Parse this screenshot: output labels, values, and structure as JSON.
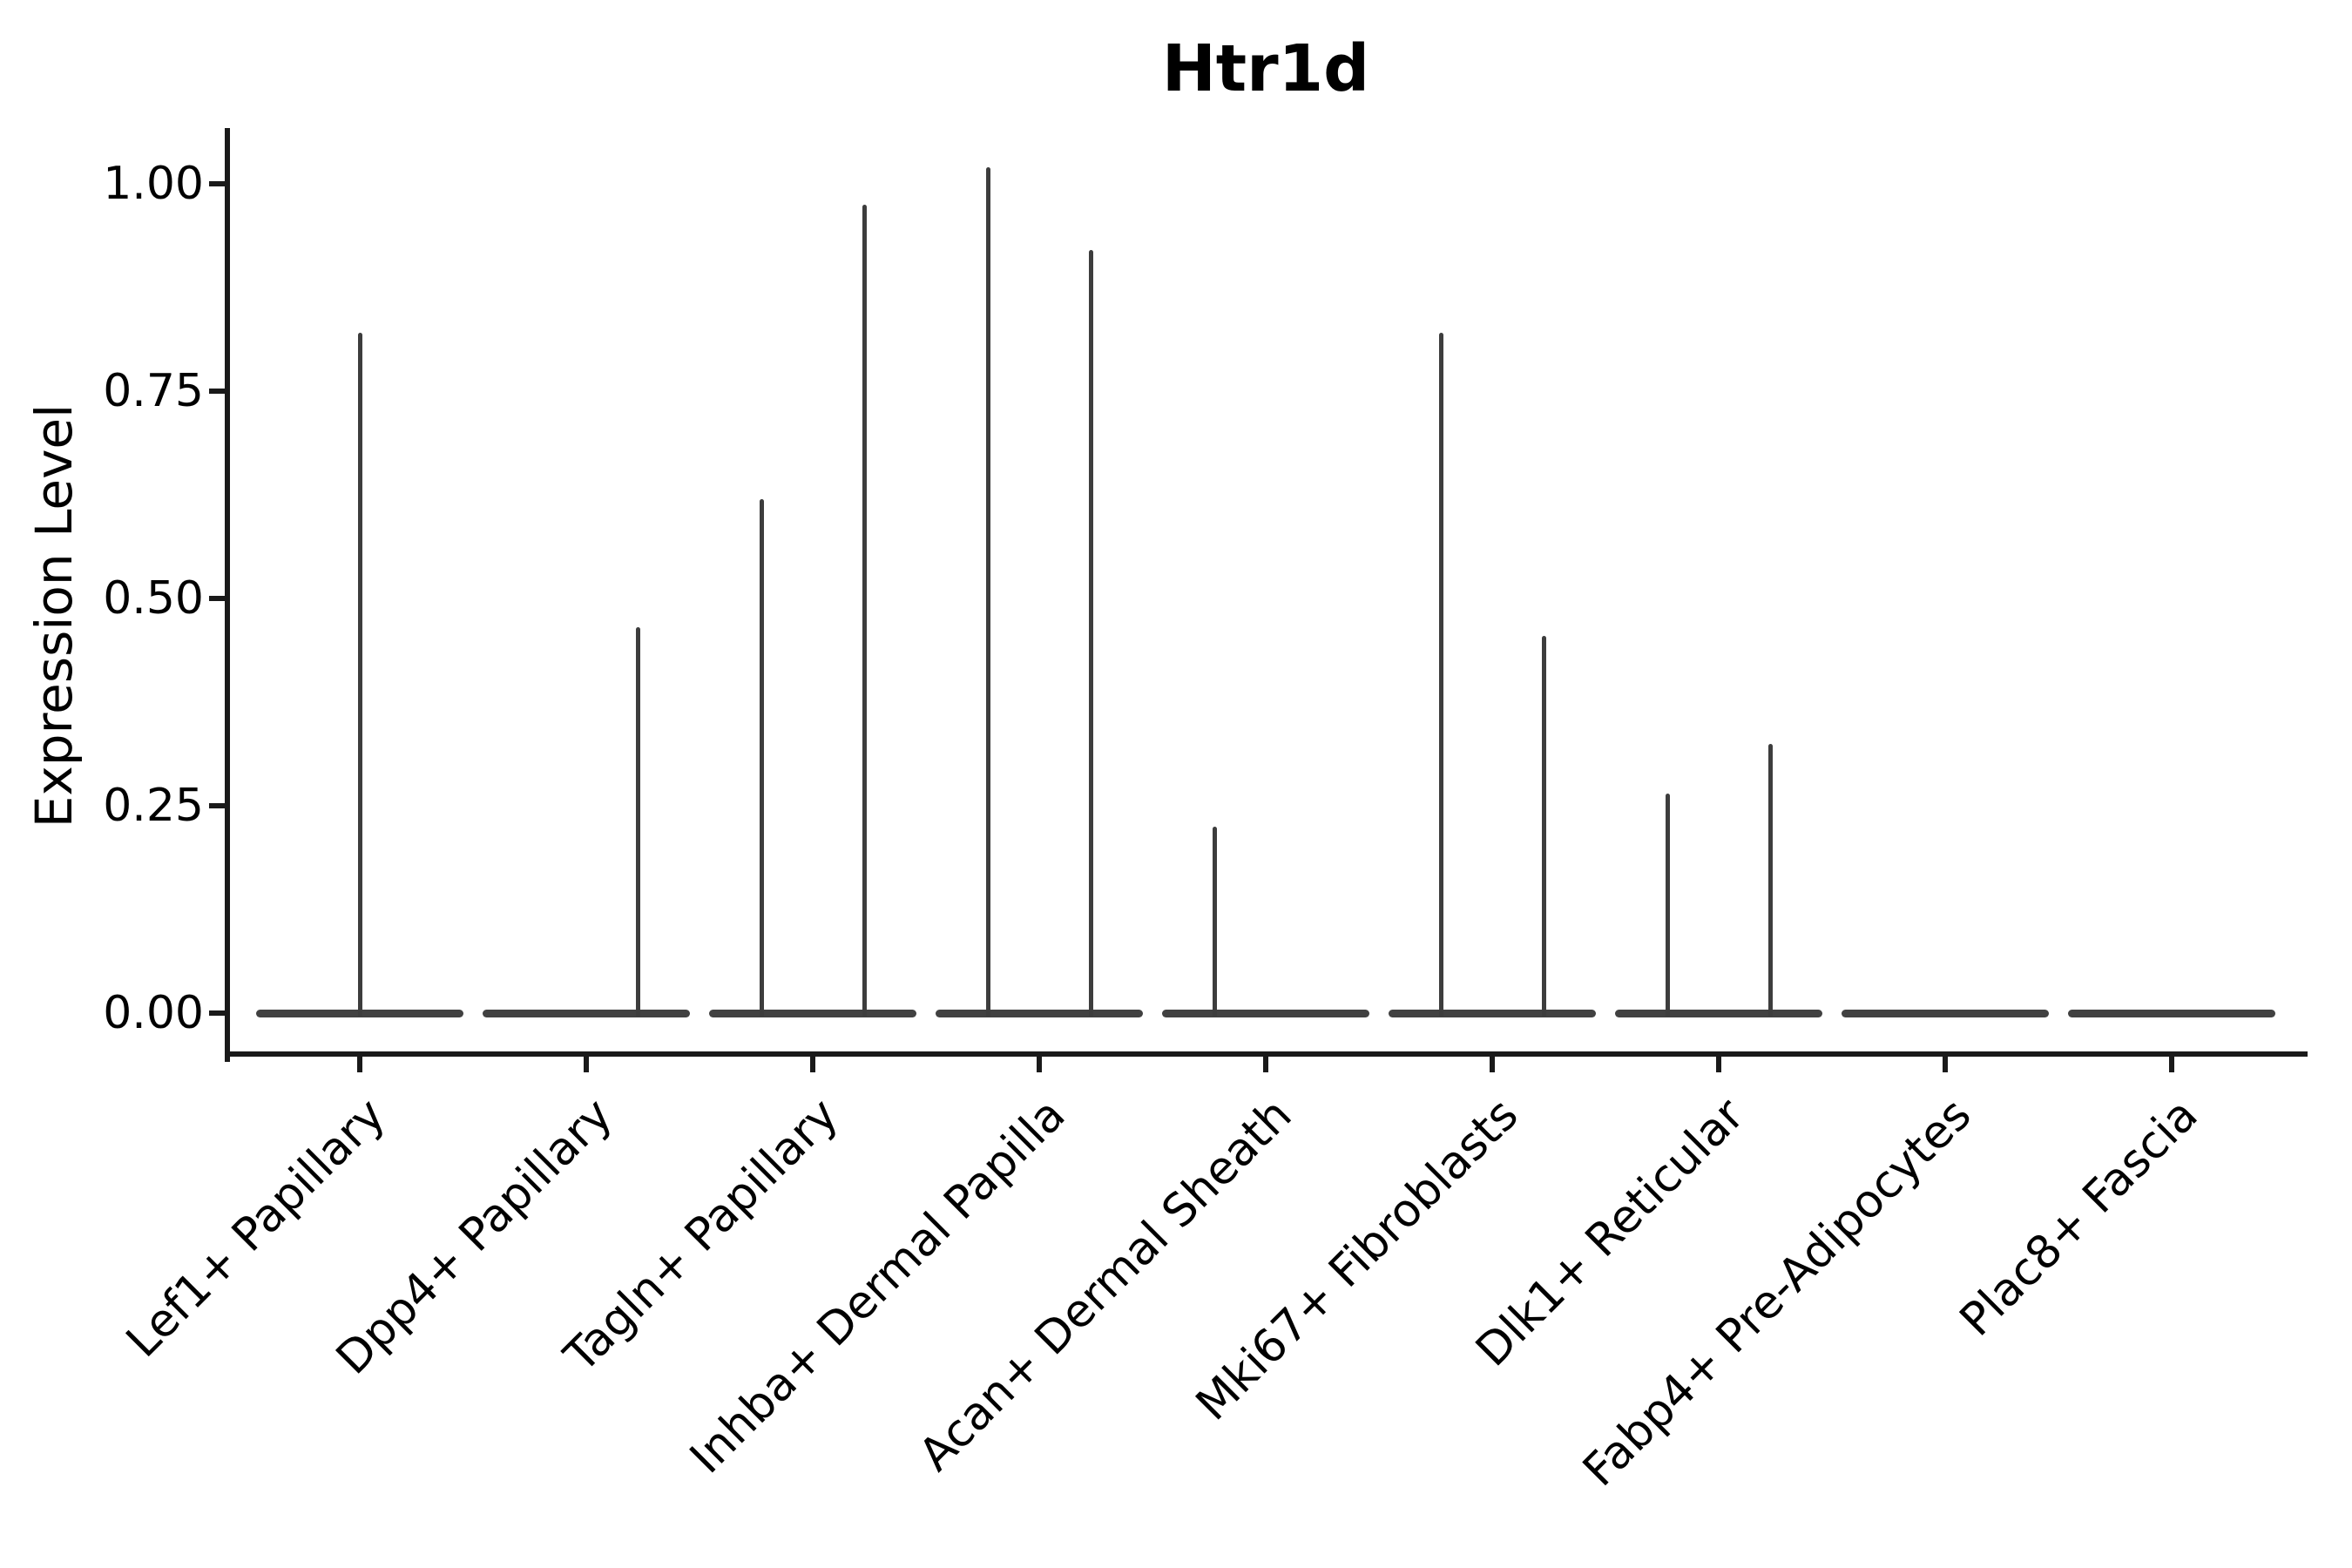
{
  "title": "Htr1d",
  "axes": {
    "ylabel": "Expression Level",
    "ytick_labels": [
      "0.00",
      "0.25",
      "0.50",
      "0.75",
      "1.00"
    ]
  },
  "chart_data": {
    "type": "violin",
    "title": "Htr1d",
    "xlabel": "",
    "ylabel": "Expression Level",
    "ylim": [
      0,
      1.07
    ],
    "yticks": [
      0,
      0.25,
      0.5,
      0.75,
      1.0
    ],
    "ytick_labels": [
      "0.00",
      "0.25",
      "0.50",
      "0.75",
      "1.00"
    ],
    "grid": false,
    "legend": "none",
    "description": "Violin plot of Htr1d expression per fibroblast cluster; each violin is a flat lens at 0 with thin density spikes at expressing-cell values. Spike pos is the horizontal offset within the category (left/center/right of the tick).",
    "categories": [
      "Lef1+ Papillary",
      "Dpp4+ Papillary",
      "Tagln+ Papillary",
      "Inhba+ Dermal Papilla",
      "Acan+ Dermal Sheath",
      "Mki67+ Fibroblasts",
      "Dlk1+ Reticular",
      "Fabp4+ Pre-Adipocytes",
      "Plac8+ Fascia"
    ],
    "series": [
      {
        "category": "Lef1+ Papillary",
        "spikes": [
          {
            "pos": "center",
            "value": 0.82
          }
        ]
      },
      {
        "category": "Dpp4+ Papillary",
        "spikes": [
          {
            "pos": "right",
            "value": 0.465
          }
        ]
      },
      {
        "category": "Tagln+ Papillary",
        "spikes": [
          {
            "pos": "left",
            "value": 0.62
          },
          {
            "pos": "right",
            "value": 0.975
          }
        ]
      },
      {
        "category": "Inhba+ Dermal Papilla",
        "spikes": [
          {
            "pos": "left",
            "value": 1.02
          },
          {
            "pos": "right",
            "value": 0.92
          }
        ]
      },
      {
        "category": "Acan+ Dermal Sheath",
        "spikes": [
          {
            "pos": "left",
            "value": 0.225
          }
        ]
      },
      {
        "category": "Mki67+ Fibroblasts",
        "spikes": [
          {
            "pos": "left",
            "value": 0.82
          },
          {
            "pos": "right",
            "value": 0.455
          }
        ]
      },
      {
        "category": "Dlk1+ Reticular",
        "spikes": [
          {
            "pos": "left",
            "value": 0.265
          },
          {
            "pos": "right",
            "value": 0.325
          }
        ]
      },
      {
        "category": "Fabp4+ Pre-Adipocytes",
        "spikes": []
      },
      {
        "category": "Plac8+ Fascia",
        "spikes": []
      }
    ],
    "colors": {
      "violin_line": "#3d3d3d",
      "violin_base": "#414141",
      "axis": "#1a1a1a",
      "text": "#000000",
      "background": "#ffffff"
    }
  }
}
